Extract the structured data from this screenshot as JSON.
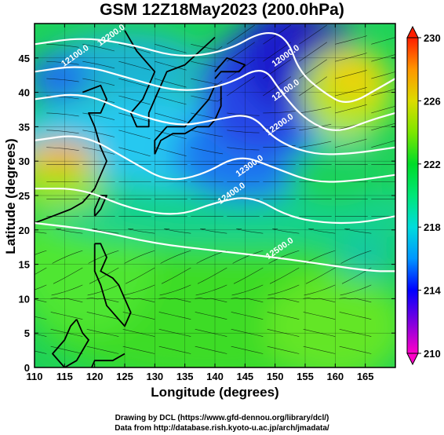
{
  "map": {
    "title": "GSM 12Z18May2023 (200.0hPa)",
    "xlabel": "Longitude (degrees)",
    "ylabel": "Latitude  (degrees)",
    "credits": [
      "Drawing by DCL (https://www.gfd-dennou.org/library/dcl/)",
      "Data from http://database.rish.kyoto-u.ac.jp/arch/jmadata/"
    ]
  },
  "chart_data": {
    "type": "heatmap",
    "x_ticks": [
      "110",
      "115",
      "120",
      "125",
      "130",
      "135",
      "140",
      "145",
      "150",
      "155",
      "160",
      "165"
    ],
    "y_ticks": [
      "0",
      "5",
      "10",
      "15",
      "20",
      "25",
      "30",
      "35",
      "40",
      "45"
    ],
    "xlim": [
      110,
      170
    ],
    "ylim": [
      0,
      50
    ],
    "colorbar": {
      "ticks": [
        "210",
        "214",
        "218",
        "222",
        "226",
        "230"
      ],
      "range": [
        210,
        230
      ],
      "colors": [
        "#ff00c8",
        "#7d00e0",
        "#0000ff",
        "#0096ff",
        "#00dcdc",
        "#00e678",
        "#00dc28",
        "#7de600",
        "#dcdc00",
        "#ff9600",
        "#ff1e00"
      ]
    },
    "contour_labels": [
      {
        "text": "12000.0",
        "lon": 152,
        "lat": 45
      },
      {
        "text": "12100.0",
        "lon": 152,
        "lat": 40
      },
      {
        "text": "12200.0",
        "lon": 151,
        "lat": 35
      },
      {
        "text": "12300.0",
        "lon": 146,
        "lat": 29
      },
      {
        "text": "12400.0",
        "lon": 143,
        "lat": 25
      },
      {
        "text": "12500.0",
        "lon": 151,
        "lat": 17
      },
      {
        "text": "12200.0",
        "lon": 123,
        "lat": 48
      },
      {
        "text": "12100.0",
        "lon": 117,
        "lat": 45
      }
    ]
  }
}
